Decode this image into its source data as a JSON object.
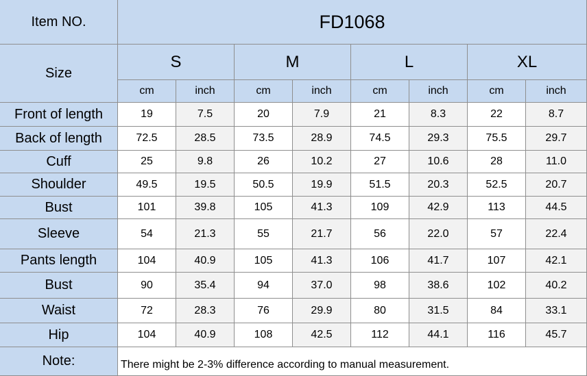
{
  "header": {
    "item_label": "Item NO.",
    "item_no": "FD1068",
    "size_label": "Size",
    "sizes": [
      "S",
      "M",
      "L",
      "XL"
    ],
    "units": [
      "cm",
      "inch"
    ]
  },
  "table": {
    "rows": [
      [
        "Front of length",
        "19",
        "7.5",
        "20",
        "7.9",
        "21",
        "8.3",
        "22",
        "8.7"
      ],
      [
        "Back of length",
        "72.5",
        "28.5",
        "73.5",
        "28.9",
        "74.5",
        "29.3",
        "75.5",
        "29.7"
      ],
      [
        "Cuff",
        "25",
        "9.8",
        "26",
        "10.2",
        "27",
        "10.6",
        "28",
        "11.0"
      ],
      [
        "Shoulder",
        "49.5",
        "19.5",
        "50.5",
        "19.9",
        "51.5",
        "20.3",
        "52.5",
        "20.7"
      ],
      [
        "Bust",
        "101",
        "39.8",
        "105",
        "41.3",
        "109",
        "42.9",
        "113",
        "44.5"
      ],
      [
        "Sleeve",
        "54",
        "21.3",
        "55",
        "21.7",
        "56",
        "22.0",
        "57",
        "22.4"
      ],
      [
        "Pants length",
        "104",
        "40.9",
        "105",
        "41.3",
        "106",
        "41.7",
        "107",
        "42.1"
      ],
      [
        "Bust",
        "90",
        "35.4",
        "94",
        "37.0",
        "98",
        "38.6",
        "102",
        "40.2"
      ],
      [
        "Waist",
        "72",
        "28.3",
        "76",
        "29.9",
        "80",
        "31.5",
        "84",
        "33.1"
      ],
      [
        "Hip",
        "104",
        "40.9",
        "108",
        "42.5",
        "112",
        "44.1",
        "116",
        "45.7"
      ]
    ]
  },
  "note": {
    "label": "Note:",
    "text": "There might be 2-3% difference according to manual measurement."
  }
}
